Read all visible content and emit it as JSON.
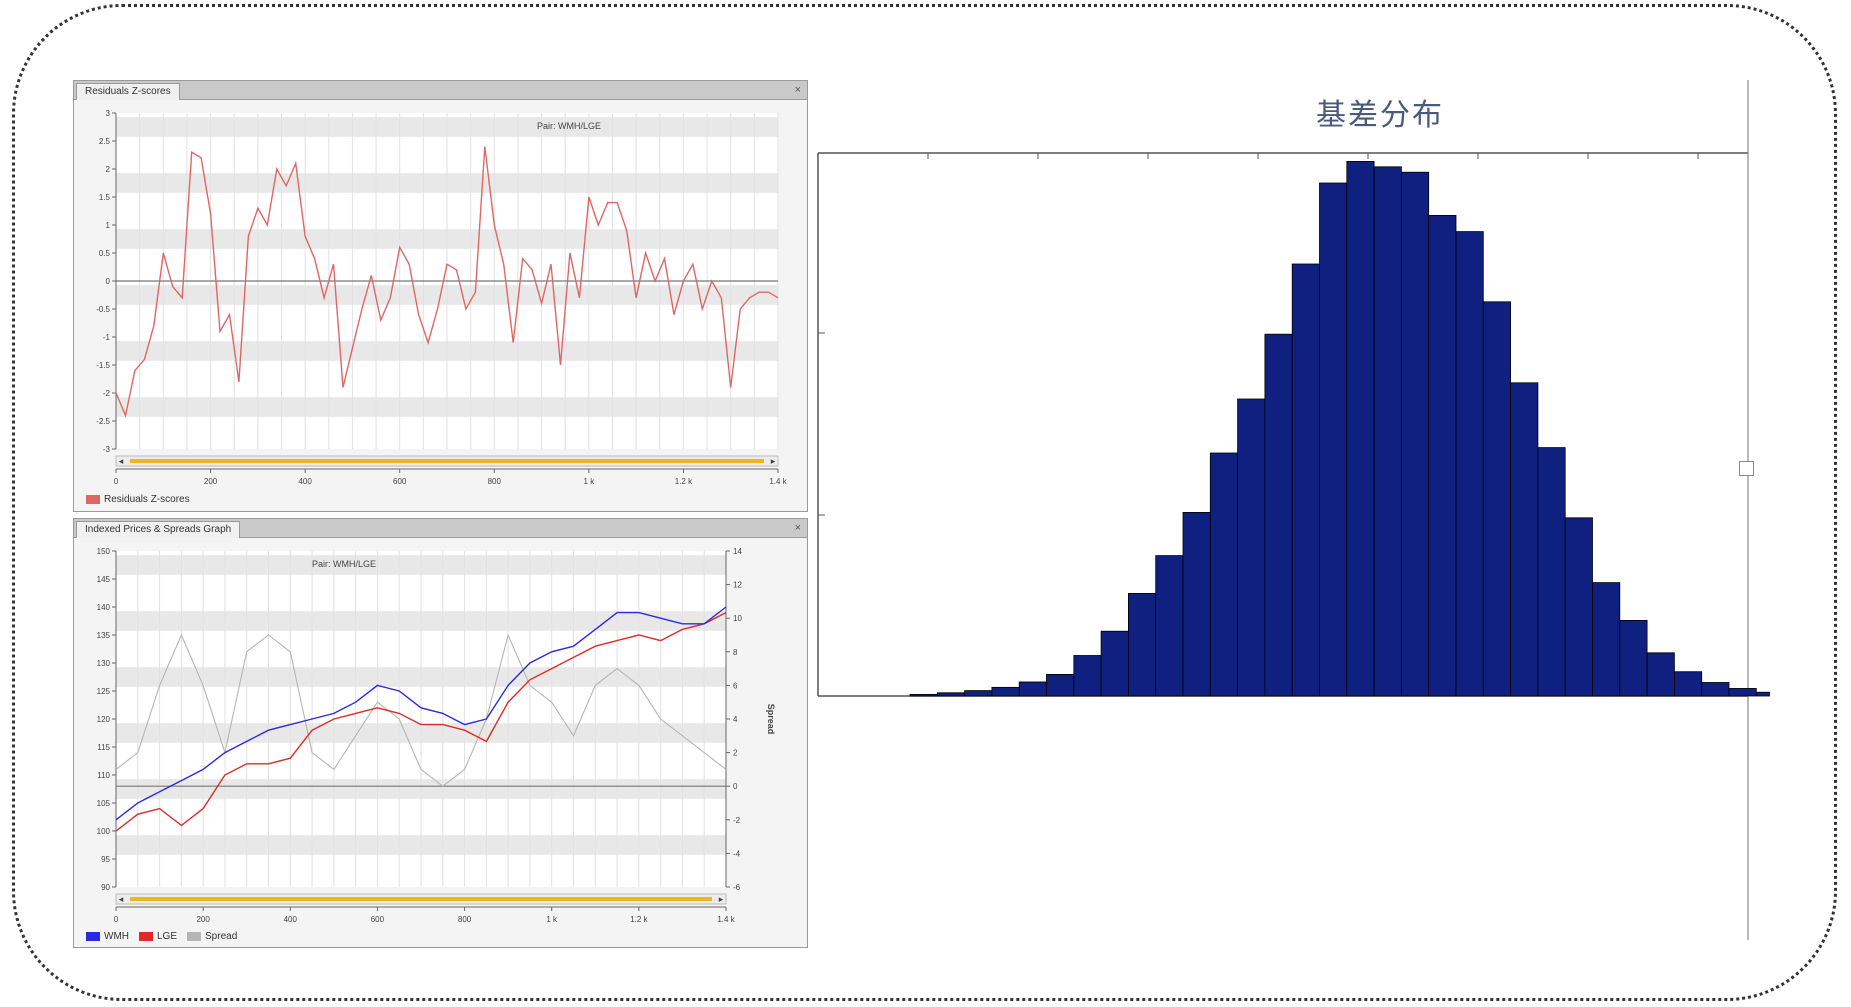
{
  "top_panel": {
    "tab_label": "Residuals Z-scores",
    "close_glyph": "×",
    "legend_label": "Residuals Z-scores"
  },
  "bottom_panel": {
    "tab_label": "Indexed Prices & Spreads Graph",
    "close_glyph": "×",
    "legend": [
      {
        "label": "WMH",
        "color": "#2a2adf"
      },
      {
        "label": "LGE",
        "color": "#e02a2a"
      },
      {
        "label": "Spread",
        "color": "#b5b5b5"
      }
    ]
  },
  "chart_data": [
    {
      "type": "line",
      "title": "Pair: WMH/LGE",
      "xlabel": "",
      "ylabel": "",
      "xlim": [
        0,
        1400
      ],
      "ylim": [
        -3,
        3
      ],
      "x_ticks": [
        "0",
        "200",
        "400",
        "600",
        "800",
        "1 k",
        "1.2 k",
        "1.4 k"
      ],
      "y_ticks": [
        "3",
        "2.5",
        "2",
        "1.5",
        "1",
        "0.5",
        "0",
        "-0.5",
        "-1",
        "-1.5",
        "-2",
        "-2.5",
        "-3"
      ],
      "grid": true,
      "legend_position": "bottom-left",
      "series": [
        {
          "name": "Residuals Z-scores",
          "color": "#e06666",
          "x": [
            0,
            20,
            40,
            60,
            80,
            100,
            120,
            140,
            160,
            180,
            200,
            220,
            240,
            260,
            280,
            300,
            320,
            340,
            360,
            380,
            400,
            420,
            440,
            460,
            480,
            500,
            520,
            540,
            560,
            580,
            600,
            620,
            640,
            660,
            680,
            700,
            720,
            740,
            760,
            780,
            800,
            820,
            840,
            860,
            880,
            900,
            920,
            940,
            960,
            980,
            1000,
            1020,
            1040,
            1060,
            1080,
            1100,
            1120,
            1140,
            1160,
            1180,
            1200,
            1220,
            1240,
            1260,
            1280,
            1300,
            1320,
            1340,
            1360,
            1380,
            1400
          ],
          "y": [
            -2.0,
            -2.4,
            -1.6,
            -1.4,
            -0.8,
            0.5,
            -0.1,
            -0.3,
            2.3,
            2.2,
            1.2,
            -0.9,
            -0.6,
            -1.8,
            0.8,
            1.3,
            1.0,
            2.0,
            1.7,
            2.1,
            0.8,
            0.4,
            -0.3,
            0.3,
            -1.9,
            -1.2,
            -0.5,
            0.1,
            -0.7,
            -0.3,
            0.6,
            0.3,
            -0.6,
            -1.1,
            -0.5,
            0.3,
            0.2,
            -0.5,
            -0.2,
            2.4,
            1.0,
            0.3,
            -1.1,
            0.4,
            0.2,
            -0.4,
            0.3,
            -1.5,
            0.5,
            -0.3,
            1.5,
            1.0,
            1.4,
            1.4,
            0.9,
            -0.3,
            0.5,
            0.0,
            0.4,
            -0.6,
            0.0,
            0.3,
            -0.5,
            0.0,
            -0.3,
            -1.9,
            -0.5,
            -0.3,
            -0.2,
            -0.2,
            -0.3
          ]
        }
      ]
    },
    {
      "type": "line",
      "title": "Pair: WMH/LGE",
      "xlabel": "",
      "ylabel": "",
      "y2label": "Spread",
      "xlim": [
        0,
        1400
      ],
      "ylim": [
        90,
        150
      ],
      "y2lim": [
        -6,
        14
      ],
      "x_ticks": [
        "0",
        "200",
        "400",
        "600",
        "800",
        "1 k",
        "1.2 k",
        "1.4 k"
      ],
      "y_ticks": [
        "150",
        "145",
        "140",
        "135",
        "130",
        "125",
        "120",
        "115",
        "110",
        "105",
        "100",
        "95",
        "90"
      ],
      "y2_ticks": [
        "14",
        "12",
        "10",
        "8",
        "6",
        "4",
        "2",
        "0",
        "-2",
        "-4",
        "-6"
      ],
      "grid": true,
      "legend_position": "bottom-left",
      "series": [
        {
          "name": "WMH",
          "color": "#2a2adf",
          "x": [
            0,
            50,
            100,
            150,
            200,
            250,
            300,
            350,
            400,
            450,
            500,
            550,
            600,
            650,
            700,
            750,
            800,
            850,
            900,
            950,
            1000,
            1050,
            1100,
            1150,
            1200,
            1250,
            1300,
            1350,
            1400
          ],
          "y": [
            102,
            105,
            107,
            109,
            111,
            114,
            116,
            118,
            119,
            120,
            121,
            123,
            126,
            125,
            122,
            121,
            119,
            120,
            126,
            130,
            132,
            133,
            136,
            139,
            139,
            138,
            137,
            137,
            140
          ]
        },
        {
          "name": "LGE",
          "color": "#e02a2a",
          "x": [
            0,
            50,
            100,
            150,
            200,
            250,
            300,
            350,
            400,
            450,
            500,
            550,
            600,
            650,
            700,
            750,
            800,
            850,
            900,
            950,
            1000,
            1050,
            1100,
            1150,
            1200,
            1250,
            1300,
            1350,
            1400
          ],
          "y": [
            100,
            103,
            104,
            101,
            104,
            110,
            112,
            112,
            113,
            118,
            120,
            121,
            122,
            121,
            119,
            119,
            118,
            116,
            123,
            127,
            129,
            131,
            133,
            134,
            135,
            134,
            136,
            137,
            139
          ]
        },
        {
          "name": "Spread",
          "color": "#b5b5b5",
          "x": [
            0,
            50,
            100,
            150,
            200,
            250,
            300,
            350,
            400,
            450,
            500,
            550,
            600,
            650,
            700,
            750,
            800,
            850,
            900,
            950,
            1000,
            1050,
            1100,
            1150,
            1200,
            1250,
            1300,
            1350,
            1400
          ],
          "y": [
            1,
            2,
            6,
            9,
            6,
            2,
            8,
            9,
            8,
            2,
            1,
            3,
            5,
            4,
            1,
            0,
            1,
            4,
            9,
            6,
            5,
            3,
            6,
            7,
            6,
            4,
            3,
            2,
            1
          ]
        }
      ]
    },
    {
      "type": "bar",
      "title": "基差分布",
      "xlabel": "",
      "ylabel": "",
      "ylim": [
        0,
        100
      ],
      "grid": false,
      "bar_color": "#102080",
      "values": [
        0.3,
        0.6,
        1.0,
        1.6,
        2.6,
        4.0,
        7.5,
        12,
        19,
        26,
        34,
        45,
        55,
        67,
        80,
        95,
        99,
        98,
        97,
        89,
        86,
        73,
        58,
        46,
        33,
        21,
        14,
        8,
        4.5,
        2.5,
        1.4,
        0.7,
        0.3
      ]
    }
  ]
}
